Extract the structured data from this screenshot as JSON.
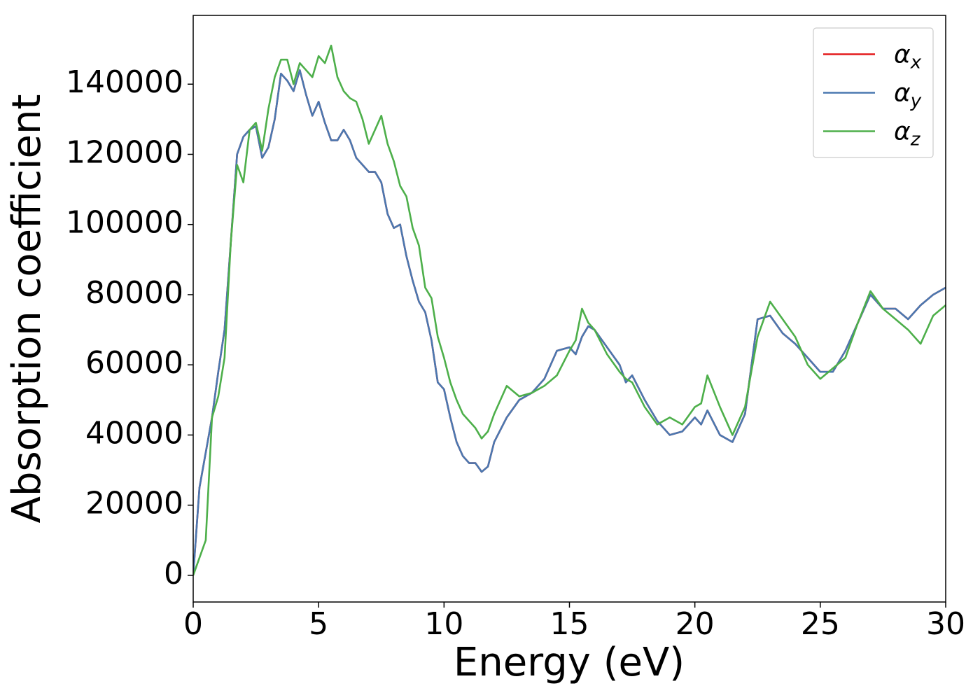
{
  "chart_data": {
    "type": "line",
    "xlabel": "Energy (eV)",
    "ylabel": "Absorption coefficient",
    "x": [
      0,
      0.25,
      0.5,
      0.75,
      1,
      1.25,
      1.5,
      1.75,
      2,
      2.25,
      2.5,
      2.75,
      3,
      3.25,
      3.5,
      3.75,
      4,
      4.25,
      4.5,
      4.75,
      5,
      5.25,
      5.5,
      5.75,
      6,
      6.25,
      6.5,
      6.75,
      7,
      7.25,
      7.5,
      7.75,
      8,
      8.25,
      8.5,
      8.75,
      9,
      9.25,
      9.5,
      9.75,
      10,
      10.25,
      10.5,
      10.75,
      11,
      11.25,
      11.5,
      11.75,
      12,
      12.5,
      13,
      13.5,
      14,
      14.5,
      15,
      15.25,
      15.5,
      15.75,
      16,
      16.5,
      17,
      17.25,
      17.5,
      18,
      18.5,
      19,
      19.5,
      20,
      20.25,
      20.5,
      21,
      21.5,
      22,
      22.5,
      23,
      23.5,
      24,
      24.5,
      25,
      25.5,
      26,
      26.5,
      27,
      27.5,
      28,
      28.5,
      29,
      29.5,
      30
    ],
    "series": [
      {
        "name": "αx",
        "color": "#e41a1c",
        "values": [
          0,
          25000,
          35000,
          45000,
          58000,
          70000,
          95000,
          120000,
          125000,
          127000,
          128000,
          119000,
          122000,
          130000,
          143000,
          141000,
          138000,
          144000,
          137000,
          131000,
          135000,
          129000,
          124000,
          124000,
          127000,
          124000,
          119000,
          117000,
          115000,
          115000,
          112000,
          103000,
          99000,
          100000,
          91000,
          84000,
          78000,
          75000,
          67000,
          55000,
          53000,
          45000,
          38000,
          34000,
          32000,
          32000,
          29500,
          31000,
          38000,
          45000,
          50000,
          52000,
          56000,
          64000,
          65000,
          63000,
          68000,
          71000,
          70000,
          65000,
          60000,
          55000,
          57000,
          50000,
          44000,
          40000,
          41000,
          45000,
          43000,
          47000,
          40000,
          38000,
          46000,
          73000,
          74000,
          69000,
          66000,
          62000,
          58000,
          58000,
          64000,
          72000,
          80000,
          76000,
          76000,
          73000,
          77000,
          80000,
          82000
        ]
      },
      {
        "name": "αy",
        "color": "#4a78b0",
        "values": [
          0,
          25000,
          35000,
          45000,
          58000,
          70000,
          95000,
          120000,
          125000,
          127000,
          128000,
          119000,
          122000,
          130000,
          143000,
          141000,
          138000,
          144000,
          137000,
          131000,
          135000,
          129000,
          124000,
          124000,
          127000,
          124000,
          119000,
          117000,
          115000,
          115000,
          112000,
          103000,
          99000,
          100000,
          91000,
          84000,
          78000,
          75000,
          67000,
          55000,
          53000,
          45000,
          38000,
          34000,
          32000,
          32000,
          29500,
          31000,
          38000,
          45000,
          50000,
          52000,
          56000,
          64000,
          65000,
          63000,
          68000,
          71000,
          70000,
          65000,
          60000,
          55000,
          57000,
          50000,
          44000,
          40000,
          41000,
          45000,
          43000,
          47000,
          40000,
          38000,
          46000,
          73000,
          74000,
          69000,
          66000,
          62000,
          58000,
          58000,
          64000,
          72000,
          80000,
          76000,
          76000,
          73000,
          77000,
          80000,
          82000
        ]
      },
      {
        "name": "αz",
        "color": "#4daf4a",
        "values": [
          0,
          5000,
          10000,
          45000,
          51000,
          62000,
          95000,
          117000,
          112000,
          127000,
          129000,
          121000,
          133000,
          142000,
          147000,
          147000,
          140000,
          146000,
          144000,
          142000,
          148000,
          146000,
          151000,
          142000,
          138000,
          136000,
          135000,
          130000,
          123000,
          127000,
          131000,
          123000,
          118000,
          111000,
          108000,
          99000,
          94000,
          82000,
          79000,
          68000,
          62000,
          55000,
          50000,
          46000,
          44000,
          42000,
          39000,
          41000,
          46000,
          54000,
          51000,
          52000,
          54000,
          57000,
          64000,
          67000,
          76000,
          72000,
          70000,
          63000,
          58000,
          56000,
          55000,
          48000,
          43000,
          45000,
          43000,
          48000,
          49000,
          57000,
          48000,
          40000,
          48000,
          68000,
          78000,
          73000,
          68000,
          60000,
          56000,
          59000,
          62000,
          72000,
          81000,
          76000,
          73000,
          70000,
          66000,
          74000,
          77000
        ]
      }
    ],
    "xlim": [
      0,
      30
    ],
    "xticks": [
      0,
      5,
      10,
      15,
      20,
      25,
      30
    ],
    "ylim": [
      -7600,
      159600
    ],
    "yticks": [
      0,
      20000,
      40000,
      60000,
      80000,
      100000,
      120000,
      140000
    ],
    "grid": false,
    "legend": "upper right"
  }
}
